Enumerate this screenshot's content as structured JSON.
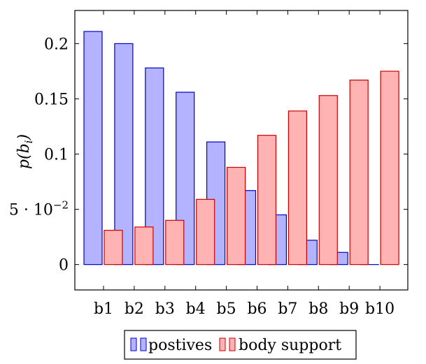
{
  "chart_data": {
    "type": "bar",
    "categories": [
      "b1",
      "b2",
      "b3",
      "b4",
      "b5",
      "b6",
      "b7",
      "b8",
      "b9",
      "b10"
    ],
    "series": [
      {
        "name": "postives",
        "values": [
          0.211,
          0.2,
          0.178,
          0.156,
          0.111,
          0.067,
          0.045,
          0.022,
          0.011,
          0.0
        ],
        "fill": "#b3b3ff",
        "stroke": "#0000cc"
      },
      {
        "name": "body support",
        "values": [
          0.031,
          0.034,
          0.04,
          0.059,
          0.088,
          0.117,
          0.139,
          0.153,
          0.167,
          0.175
        ],
        "fill": "#ffb3b3",
        "stroke": "#cc0000"
      }
    ],
    "ylabel": "p(b_i)",
    "ylabel_parts": {
      "main": "p(b",
      "sub": "i",
      "close": ")"
    },
    "xlabel": "",
    "ylim": [
      -0.023,
      0.23
    ],
    "yticks": [
      {
        "value": 0,
        "label": "0"
      },
      {
        "value": 0.05,
        "label": "5 · 10",
        "exp": "−2"
      },
      {
        "value": 0.1,
        "label": "0.1"
      },
      {
        "value": 0.15,
        "label": "0.15"
      },
      {
        "value": 0.2,
        "label": "0.2"
      }
    ],
    "grid": false,
    "legend_position": "bottom-center"
  }
}
